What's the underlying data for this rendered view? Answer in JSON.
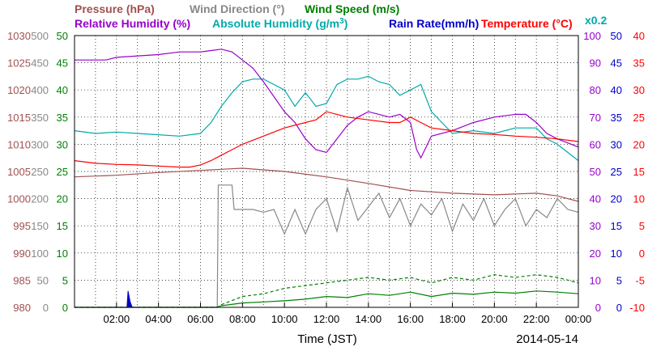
{
  "chart_data": {
    "type": "line",
    "legend": [
      {
        "name": "Pressure (hPa)",
        "color": "#a05050"
      },
      {
        "name": "Wind Direction (°)",
        "color": "#888888"
      },
      {
        "name": "Wind Speed (m/s)",
        "color": "#008000"
      },
      {
        "name": "Relative Humidity (%)",
        "color": "#9900cc"
      },
      {
        "name": "Absolute Humidity (g/m",
        "sup": "3",
        "tail": ")",
        "color": "#00aaaa"
      },
      {
        "name": "Rain Rate(mm/h)",
        "color": "#0000cc"
      },
      {
        "name": "Temperature (°C)",
        "color": "#ff0000"
      }
    ],
    "scale_note": "x0.2",
    "xlabel": "Time (JST)",
    "date": "2014-05-14",
    "x_range_hours": [
      0,
      24
    ],
    "x_ticks": [
      "02:00",
      "04:00",
      "06:00",
      "08:00",
      "10:00",
      "12:00",
      "14:00",
      "16:00",
      "18:00",
      "20:00",
      "22:00",
      "00:00"
    ],
    "axes": {
      "pressure": {
        "color": "#a05050",
        "ylim": [
          980,
          1030
        ],
        "ticks": [
          "980",
          "985",
          "990",
          "995",
          "1000",
          "1005",
          "1010",
          "1015",
          "1020",
          "1025",
          "1030"
        ]
      },
      "wind_direction": {
        "color": "#888888",
        "ylim": [
          0,
          500
        ],
        "ticks": [
          "0",
          "50",
          "100",
          "150",
          "200",
          "250",
          "300",
          "350",
          "400",
          "450",
          "500"
        ]
      },
      "wind_speed": {
        "color": "#008000",
        "ylim": [
          0,
          50
        ],
        "ticks": [
          "0",
          "5",
          "10",
          "15",
          "20",
          "25",
          "30",
          "35",
          "40",
          "45",
          "50"
        ]
      },
      "humidity": {
        "color": "#9900cc",
        "ylim": [
          0,
          100
        ],
        "ticks": [
          "0",
          "10",
          "20",
          "30",
          "40",
          "50",
          "60",
          "70",
          "80",
          "90",
          "100"
        ]
      },
      "rain_rate": {
        "color": "#0000cc",
        "ylim": [
          0,
          50
        ],
        "ticks": [
          "0",
          "5",
          "10",
          "15",
          "20",
          "25",
          "30",
          "35",
          "40",
          "45",
          "50"
        ]
      },
      "temperature": {
        "color": "#ff0000",
        "ylim": [
          -10,
          40
        ],
        "ticks": [
          "-10",
          "-5",
          "0",
          "5",
          "10",
          "15",
          "20",
          "25",
          "30",
          "35",
          "40"
        ]
      }
    },
    "series": [
      {
        "name": "Temperature",
        "axis": "temperature",
        "color": "#ff0000",
        "x": [
          0,
          1,
          2,
          3,
          4,
          5,
          5.5,
          6,
          6.5,
          7,
          7.5,
          8,
          9,
          10,
          11,
          11.5,
          12,
          12.5,
          13,
          14,
          15,
          15.5,
          16,
          16.5,
          17,
          18,
          19,
          20,
          21,
          22,
          23,
          24
        ],
        "y": [
          17,
          16.5,
          16.3,
          16.2,
          16,
          15.8,
          15.8,
          16.2,
          17,
          18,
          19,
          20,
          21.5,
          23,
          24,
          24.5,
          26,
          25.5,
          25,
          24.5,
          24,
          24,
          25,
          24,
          23,
          22.5,
          22,
          21.8,
          21.5,
          21.3,
          21,
          20.5
        ]
      },
      {
        "name": "Pressure",
        "axis": "pressure",
        "color": "#a05050",
        "x": [
          0,
          2,
          4,
          6,
          7,
          8,
          10,
          12,
          14,
          16,
          18,
          20,
          22,
          23,
          24
        ],
        "y": [
          1004,
          1004.3,
          1004.8,
          1005.2,
          1005.4,
          1005.6,
          1005,
          1004,
          1002.8,
          1001.5,
          1001,
          1000.7,
          1001,
          1000.5,
          999.5
        ]
      },
      {
        "name": "Relative Humidity",
        "axis": "humidity",
        "color": "#9900cc",
        "x": [
          0,
          1.5,
          2,
          4,
          5,
          6,
          6.5,
          7,
          7.5,
          8,
          8.5,
          9,
          10,
          10.5,
          11,
          11.5,
          12,
          12.5,
          13,
          13.5,
          14,
          14.5,
          15,
          15.5,
          16,
          16.3,
          16.5,
          17,
          18,
          19,
          20,
          21,
          21.5,
          22,
          22.5,
          23,
          24
        ],
        "y": [
          91,
          91,
          92,
          93,
          94,
          94,
          94.5,
          95,
          94,
          91,
          88,
          83,
          72,
          68,
          62,
          58,
          57,
          62,
          67,
          70,
          72,
          71,
          70,
          71,
          68,
          58,
          55,
          63,
          65,
          68,
          70,
          71,
          71,
          68,
          64,
          62,
          59
        ]
      },
      {
        "name": "Absolute Humidity",
        "axis": "humidity",
        "color": "#00aaaa",
        "x": [
          0,
          1,
          2,
          3,
          4,
          5,
          6,
          6.5,
          7,
          7.5,
          8,
          8.5,
          9,
          9.5,
          10,
          10.5,
          11,
          11.5,
          12,
          12.5,
          13,
          13.5,
          14,
          14.5,
          15,
          15.5,
          16,
          16.5,
          17,
          17.5,
          18,
          19,
          20,
          21,
          22,
          22.5,
          23,
          24
        ],
        "y": [
          65,
          64,
          64.5,
          64,
          63.5,
          63,
          64,
          68,
          74,
          79,
          83,
          84,
          84,
          82,
          80,
          74,
          79,
          74,
          75,
          82,
          84,
          84,
          85,
          83,
          82,
          78,
          80,
          82,
          72,
          68,
          64,
          65,
          64,
          66,
          66,
          62,
          60,
          54
        ]
      },
      {
        "name": "Wind Direction",
        "axis": "wind_direction",
        "color": "#888888",
        "x": [
          0,
          6.8,
          6.85,
          7.0,
          7.5,
          7.6,
          8.0,
          8.5,
          9.0,
          9.5,
          10.0,
          10.5,
          11.0,
          11.5,
          12.0,
          12.5,
          13.0,
          13.5,
          14.0,
          14.5,
          15.0,
          15.5,
          16.0,
          16.5,
          17.0,
          17.5,
          18.0,
          18.5,
          19.0,
          19.5,
          20.0,
          20.5,
          21.0,
          21.5,
          22.0,
          22.5,
          23.0,
          23.5,
          24
        ],
        "y": [
          0,
          0,
          225,
          225,
          225,
          180,
          180,
          180,
          175,
          180,
          135,
          180,
          135,
          180,
          200,
          140,
          220,
          160,
          185,
          210,
          165,
          200,
          150,
          190,
          170,
          200,
          140,
          190,
          160,
          200,
          150,
          180,
          200,
          150,
          180,
          165,
          200,
          180,
          175
        ]
      },
      {
        "name": "Wind Speed",
        "axis": "wind_speed",
        "color": "#008000",
        "x": [
          0,
          6.8,
          7,
          8,
          9,
          10,
          11,
          12,
          13,
          14,
          15,
          16,
          17,
          18,
          19,
          20,
          21,
          22,
          23,
          24
        ],
        "y": [
          0,
          0,
          0.3,
          0.8,
          1.0,
          1.2,
          1.5,
          2.0,
          1.8,
          2.5,
          2.2,
          2.8,
          2.0,
          2.6,
          2.4,
          2.8,
          2.6,
          3.0,
          2.8,
          2.5
        ]
      },
      {
        "name": "Wind Speed (gust)",
        "axis": "wind_speed",
        "color": "#008000",
        "dashed": true,
        "x": [
          0,
          6.8,
          7,
          8,
          9,
          10,
          11,
          12,
          13,
          14,
          15,
          16,
          17,
          18,
          19,
          20,
          21,
          22,
          23,
          24
        ],
        "y": [
          0,
          0,
          0.5,
          2.0,
          2.5,
          3.5,
          4.0,
          4.5,
          5.0,
          5.5,
          5.0,
          5.5,
          4.5,
          5.5,
          5.0,
          6.0,
          5.5,
          6.0,
          5.5,
          4.5
        ]
      },
      {
        "name": "Rain Rate",
        "axis": "rain_rate",
        "color": "#0000cc",
        "fill": true,
        "x": [
          0,
          2.5,
          2.55,
          2.65,
          2.75,
          24
        ],
        "y": [
          0,
          0,
          3,
          1,
          0,
          0
        ]
      }
    ]
  }
}
